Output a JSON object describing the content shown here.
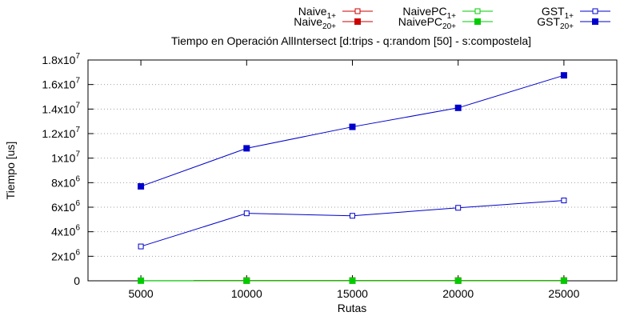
{
  "chart_data": {
    "type": "line",
    "title": "Tiempo en Operación AllIntersect [d:trips - q:random [50] - s:compostela]",
    "xlabel": "Rutas",
    "ylabel": "Tiempo [us]",
    "categories": [
      "5000",
      "10000",
      "15000",
      "20000",
      "25000"
    ],
    "xlim": [
      0,
      5
    ],
    "ylim": [
      0,
      18000000
    ],
    "y_tick_values": [
      0,
      2000000,
      4000000,
      6000000,
      8000000,
      10000000,
      12000000,
      14000000,
      16000000,
      18000000
    ],
    "y_tick_labels": [
      {
        "mant": "0",
        "exp": ""
      },
      {
        "mant": "2x10",
        "exp": "6"
      },
      {
        "mant": "4x10",
        "exp": "6"
      },
      {
        "mant": "6x10",
        "exp": "6"
      },
      {
        "mant": "8x10",
        "exp": "6"
      },
      {
        "mant": "1x10",
        "exp": "7"
      },
      {
        "mant": "1.2x10",
        "exp": "7"
      },
      {
        "mant": "1.4x10",
        "exp": "7"
      },
      {
        "mant": "1.6x10",
        "exp": "7"
      },
      {
        "mant": "1.8x10",
        "exp": "7"
      }
    ],
    "grid": true,
    "legend_position": "top",
    "series": [
      {
        "name": "Naive",
        "sub": "1+",
        "color": "#cc0000",
        "marker": "open-square",
        "values": [
          null,
          20000,
          20000,
          20000,
          20000
        ],
        "line_start": 0.5
      },
      {
        "name": "Naive",
        "sub": "20+",
        "color": "#cc0000",
        "marker": "filled-square",
        "values": [
          null,
          20000,
          20000,
          20000,
          20000
        ],
        "line_start": 0.5
      },
      {
        "name": "NaivePC",
        "sub": "1+",
        "color": "#00cc00",
        "marker": "open-square",
        "values": [
          10000,
          10000,
          10000,
          10000,
          10000
        ]
      },
      {
        "name": "NaivePC",
        "sub": "20+",
        "color": "#00cc00",
        "marker": "filled-square",
        "values": [
          10000,
          10000,
          10000,
          10000,
          10000
        ]
      },
      {
        "name": "GST",
        "sub": "1+",
        "color": "#0000cc",
        "marker": "open-square",
        "values": [
          2800000,
          5500000,
          5300000,
          5950000,
          6550000
        ]
      },
      {
        "name": "GST",
        "sub": "20+",
        "color": "#0000cc",
        "marker": "filled-square",
        "values": [
          7700000,
          10800000,
          12550000,
          14100000,
          16750000
        ]
      }
    ]
  }
}
